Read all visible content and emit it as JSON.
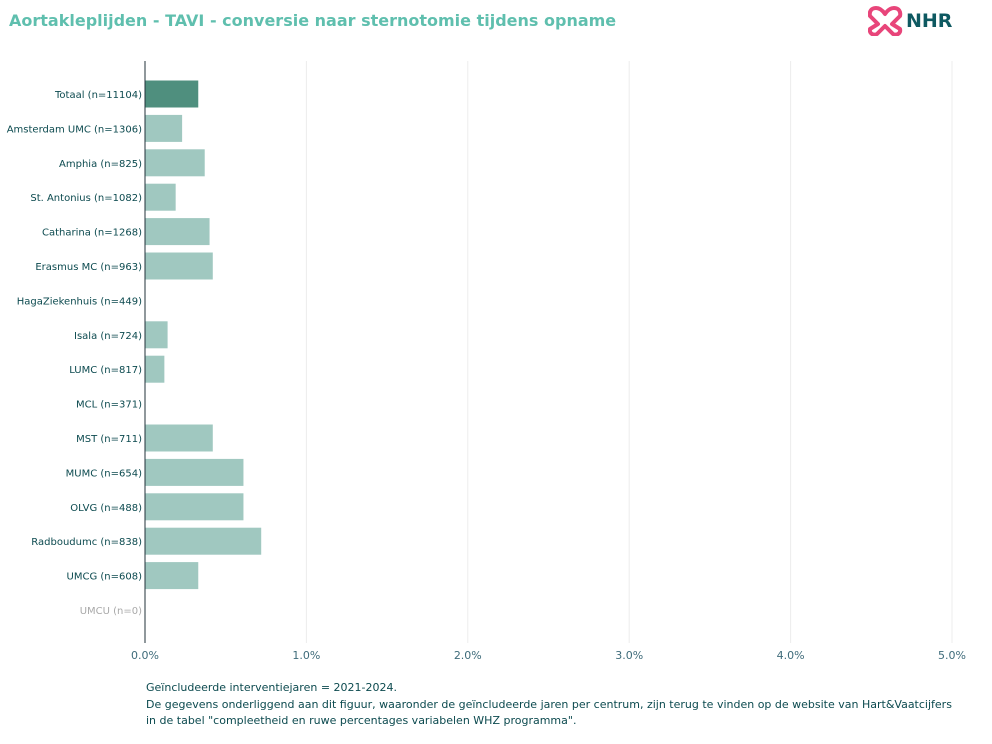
{
  "title": "Aortakleplijden - TAVI - conversie naar sternotomie tijdens opname",
  "logo": {
    "text": "NHR",
    "icon": "nhr-heart-knot-icon"
  },
  "colors": {
    "title": "#5fbfae",
    "highlight_bar": "#4f8f7e",
    "bar": "#a0c8c0",
    "label": "#0c4a4f",
    "muted_label": "#a9a9a9",
    "axis": "#22303a",
    "grid": "#ececec",
    "tick": "#3e6b7a",
    "logo_pink": "#e8457a",
    "logo_dark": "#0e5961"
  },
  "chart_data": {
    "type": "bar",
    "orientation": "horizontal",
    "categories": [
      "Totaal (n=11104)",
      "Amsterdam UMC (n=1306)",
      "Amphia (n=825)",
      "St. Antonius (n=1082)",
      "Catharina (n=1268)",
      "Erasmus MC (n=963)",
      "HagaZiekenhuis (n=449)",
      "Isala (n=724)",
      "LUMC (n=817)",
      "MCL (n=371)",
      "MST (n=711)",
      "MUMC (n=654)",
      "OLVG (n=488)",
      "Radboudumc (n=838)",
      "UMCG (n=608)",
      "UMCU (n=0)"
    ],
    "values": [
      0.33,
      0.23,
      0.37,
      0.19,
      0.4,
      0.42,
      0.0,
      0.14,
      0.12,
      0.0,
      0.42,
      0.61,
      0.61,
      0.72,
      0.33,
      0.0
    ],
    "highlight_index": 0,
    "muted_indices": [
      15
    ],
    "unit": "%",
    "xlim": [
      0,
      5
    ],
    "xticks": [
      0,
      1,
      2,
      3,
      4,
      5
    ],
    "xtick_labels": [
      "0.0%",
      "1.0%",
      "2.0%",
      "3.0%",
      "4.0%",
      "5.0%"
    ],
    "grid": true,
    "xlabel": "",
    "ylabel": ""
  },
  "footer": {
    "line1": "Geïncludeerde interventiejaren = 2021-2024.",
    "line2": "De gegevens onderliggend aan dit figuur, waaronder de geïncludeerde jaren per centrum, zijn terug te vinden op de website van Hart&Vaatcijfers",
    "line3": " in de tabel \"compleetheid en ruwe percentages variabelen WHZ programma\"."
  }
}
